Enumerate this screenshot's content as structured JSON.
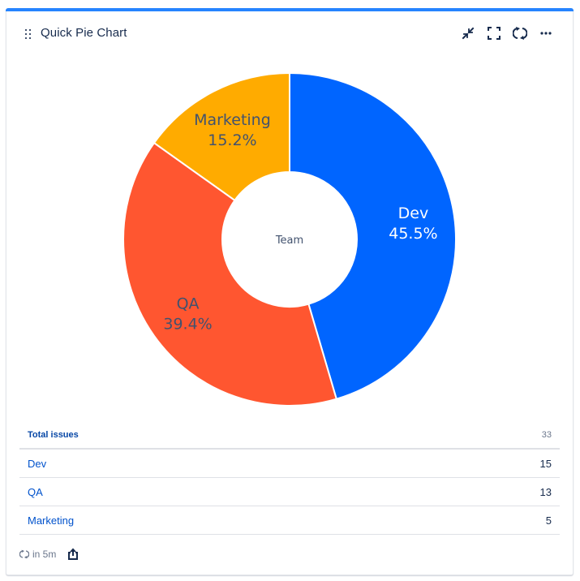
{
  "header": {
    "title": "Quick Pie Chart",
    "actions": [
      {
        "name": "minimize-icon",
        "label": "Minimize"
      },
      {
        "name": "fullscreen-icon",
        "label": "Full screen"
      },
      {
        "name": "refresh-icon",
        "label": "Refresh"
      },
      {
        "name": "more-icon",
        "label": "More"
      }
    ]
  },
  "chart_data": {
    "type": "pie",
    "variant": "donut",
    "center_label": "Team",
    "categories": [
      "Dev",
      "QA",
      "Marketing"
    ],
    "values": [
      15,
      13,
      5
    ],
    "percentages": [
      45.5,
      39.4,
      15.2
    ],
    "labels": [
      "45.5%",
      "39.4%",
      "15.2%"
    ],
    "colors": [
      "#0065FF",
      "#FF5630",
      "#FFAB00"
    ],
    "label_colors": [
      "#ffffff",
      "#42526E",
      "#42526E"
    ],
    "title": "",
    "legend": "none",
    "start_angle": "12 o'clock",
    "direction": "clockwise"
  },
  "summary": {
    "total_label": "Total issues",
    "total_value": "33",
    "rows": [
      {
        "name": "Dev",
        "value": "15"
      },
      {
        "name": "QA",
        "value": "13"
      },
      {
        "name": "Marketing",
        "value": "5"
      }
    ]
  },
  "footer": {
    "refresh_text": "in 5m",
    "share_label": "Share"
  },
  "colors": {
    "accent": "#2684FF",
    "link": "#0052CC",
    "text": "#172B4D"
  }
}
